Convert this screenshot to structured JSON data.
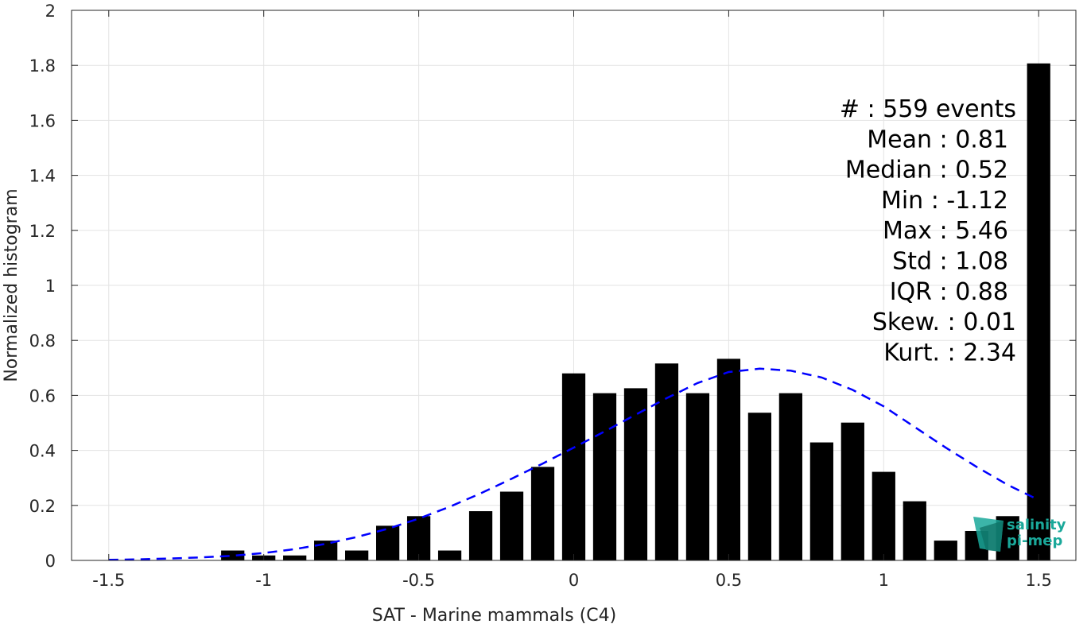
{
  "chart_data": {
    "type": "bar",
    "xlabel": "SAT - Marine mammals (C4)",
    "ylabel": "Normalized histogram",
    "xlim": [
      -1.62,
      1.62
    ],
    "ylim": [
      0,
      2
    ],
    "x_ticks": [
      -1.5,
      -1,
      -0.5,
      0,
      0.5,
      1,
      1.5
    ],
    "x_tick_labels": [
      "-1.5",
      "-1",
      "-0.5",
      "0",
      "0.5",
      "1",
      "1.5"
    ],
    "y_ticks": [
      0,
      0.2,
      0.4,
      0.6,
      0.8,
      1,
      1.2,
      1.4,
      1.6,
      1.8,
      2
    ],
    "y_tick_labels": [
      "0",
      "0.2",
      "0.4",
      "0.6",
      "0.8",
      "1",
      "1.2",
      "1.4",
      "1.6",
      "1.8",
      "2"
    ],
    "grid": true,
    "bin_width": 0.1,
    "bar_width": 0.075,
    "series": [
      {
        "x": [
          -1.1,
          -1.0,
          -0.9,
          -0.8,
          -0.7,
          -0.6,
          -0.5,
          -0.4,
          -0.3,
          -0.2,
          -0.1,
          0.0,
          0.1,
          0.2,
          0.3,
          0.4,
          0.5,
          0.6,
          0.7,
          0.8,
          0.9,
          1.0,
          1.1,
          1.2,
          1.3,
          1.4,
          1.5
        ],
        "values": [
          0.036,
          0.018,
          0.018,
          0.072,
          0.036,
          0.126,
          0.161,
          0.036,
          0.179,
          0.25,
          0.34,
          0.68,
          0.608,
          0.626,
          0.716,
          0.608,
          0.733,
          0.537,
          0.608,
          0.429,
          0.501,
          0.322,
          0.215,
          0.072,
          0.107,
          0.161,
          1.807
        ],
        "color": "#000000"
      }
    ],
    "fit_curve": {
      "style": "dashed",
      "color": "#0000ff",
      "x": [
        -1.5,
        -1.4,
        -1.3,
        -1.2,
        -1.1,
        -1.0,
        -0.9,
        -0.8,
        -0.7,
        -0.6,
        -0.5,
        -0.4,
        -0.3,
        -0.2,
        -0.1,
        0.0,
        0.1,
        0.2,
        0.3,
        0.4,
        0.5,
        0.6,
        0.7,
        0.8,
        0.9,
        1.0,
        1.1,
        1.2,
        1.3,
        1.4,
        1.5
      ],
      "y": [
        0.002,
        0.004,
        0.007,
        0.011,
        0.017,
        0.027,
        0.041,
        0.06,
        0.085,
        0.115,
        0.152,
        0.195,
        0.244,
        0.297,
        0.352,
        0.41,
        0.469,
        0.53,
        0.59,
        0.645,
        0.685,
        0.697,
        0.69,
        0.665,
        0.62,
        0.56,
        0.485,
        0.41,
        0.34,
        0.275,
        0.22
      ]
    },
    "stats": [
      "#  : 559 events",
      "Mean : 0.81",
      "Median : 0.52",
      "Min : -1.12",
      "Max : 5.46",
      "Std : 1.08",
      "IQR : 0.88",
      "Skew. : 0.01",
      "Kurt. : 2.34"
    ]
  },
  "logo": {
    "line1": "salinity",
    "line2": "pi-mep",
    "color": "#1aa89a"
  }
}
